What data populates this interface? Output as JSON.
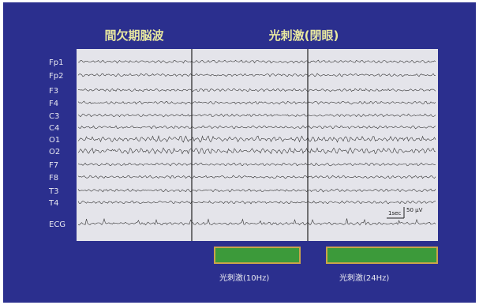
{
  "titles": [
    "間欠期脳波",
    "光刺激(閉眼)"
  ],
  "channels": [
    "Fp1",
    "Fp2",
    "F3",
    "F4",
    "C3",
    "C4",
    "O1",
    "O2",
    "F7",
    "F8",
    "T3",
    "T4",
    "ECG"
  ],
  "scale": {
    "time": "1sec",
    "amplitude": "50 μV"
  },
  "stimuli": [
    "光刺激(10Hz)",
    "光刺激(24Hz)"
  ]
}
